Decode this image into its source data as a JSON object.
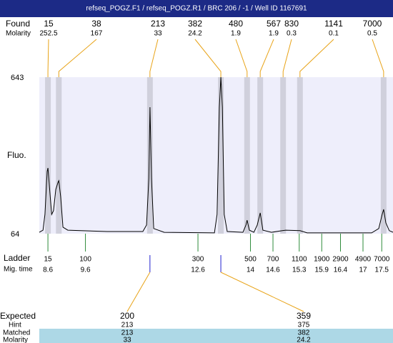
{
  "chart_data": {
    "type": "electropherogram",
    "title": "refseq_POGZ.F1 / refseq_POGZ.R1 / BRC 206 / -1 / Well ID 1167691",
    "found_label": "Found",
    "molarity_label": "Molarity",
    "ylabel": "Fluo.",
    "ylim": [
      64,
      643
    ],
    "yticks": [
      64,
      643
    ],
    "xlim": [
      8.37,
      17.8
    ],
    "color": "#000000",
    "x": [
      8.37,
      8.47,
      8.52,
      8.58,
      8.6,
      8.7,
      8.75,
      8.81,
      8.87,
      8.89,
      8.94,
      9.0,
      9.13,
      10.18,
      11.13,
      11.23,
      11.29,
      11.32,
      11.36,
      11.42,
      11.7,
      13.04,
      13.11,
      13.17,
      13.21,
      13.25,
      13.3,
      13.38,
      13.8,
      13.88,
      13.91,
      13.97,
      14.09,
      14.18,
      14.26,
      14.33,
      14.56,
      14.85,
      14.94,
      15.32,
      15.51,
      17.23,
      17.42,
      17.51,
      17.55,
      17.61,
      17.7,
      17.8
    ],
    "values": [
      69,
      77,
      135,
      294,
      307,
      135,
      149,
      228,
      254,
      260,
      201,
      88,
      77,
      72,
      72,
      96,
      268,
      532,
      268,
      83,
      69,
      67,
      135,
      532,
      643,
      532,
      135,
      72,
      69,
      96,
      114,
      77,
      69,
      96,
      141,
      77,
      69,
      75,
      77,
      75,
      67,
      67,
      83,
      135,
      154,
      104,
      75,
      69
    ],
    "peaks": {
      "sizes": [
        15,
        38,
        213,
        382,
        480,
        567,
        830,
        1141,
        7000
      ],
      "molarity": [
        252.5,
        167,
        33,
        24.2,
        1.9,
        1.9,
        0.3,
        0.1,
        0.5
      ],
      "x": [
        8.6,
        8.89,
        11.32,
        13.21,
        13.91,
        14.26,
        14.87,
        15.32,
        17.55
      ]
    },
    "ladder": {
      "label": "Ladder",
      "time_label": "Mig. time",
      "sizes": [
        15,
        100,
        300,
        500,
        700,
        1100,
        1900,
        2900,
        4900,
        7000
      ],
      "times": [
        8.6,
        9.6,
        12.6,
        14,
        14.6,
        15.3,
        15.9,
        16.4,
        17,
        17.5
      ]
    },
    "expected": {
      "expected_label": "Expected",
      "hint_label": "Hint",
      "matched_label": "Matched",
      "molarity_label": "Molarity",
      "expected": [
        200,
        359
      ],
      "hint": [
        213,
        375
      ],
      "matched": [
        213,
        382
      ],
      "molarity": [
        33,
        24.2
      ]
    }
  }
}
